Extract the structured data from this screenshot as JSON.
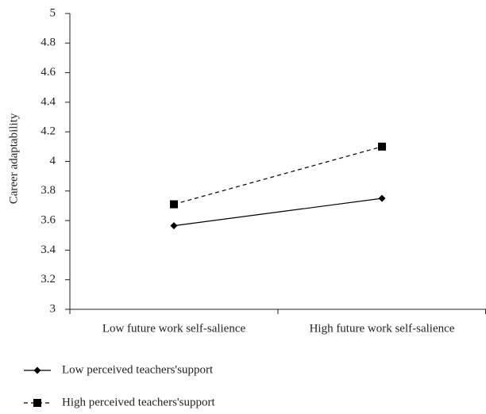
{
  "chart_data": {
    "type": "line",
    "y_label": "Career adaptability",
    "categories": [
      "Low future work self-salience",
      "High future work self-salience"
    ],
    "series": [
      {
        "name": "Low perceived teachers'support",
        "color": "#000000",
        "marker": "diamond",
        "dashed": false,
        "values": [
          3.565,
          3.75
        ]
      },
      {
        "name": "High perceived teachers'support",
        "color": "#000000",
        "marker": "square",
        "dashed": true,
        "values": [
          3.71,
          4.1
        ]
      }
    ],
    "ylim": [
      3,
      5
    ],
    "yticks": [
      3,
      3.2,
      3.4,
      3.6,
      3.8,
      4,
      4.2,
      4.4,
      4.6,
      4.8,
      5
    ],
    "grid": false
  }
}
